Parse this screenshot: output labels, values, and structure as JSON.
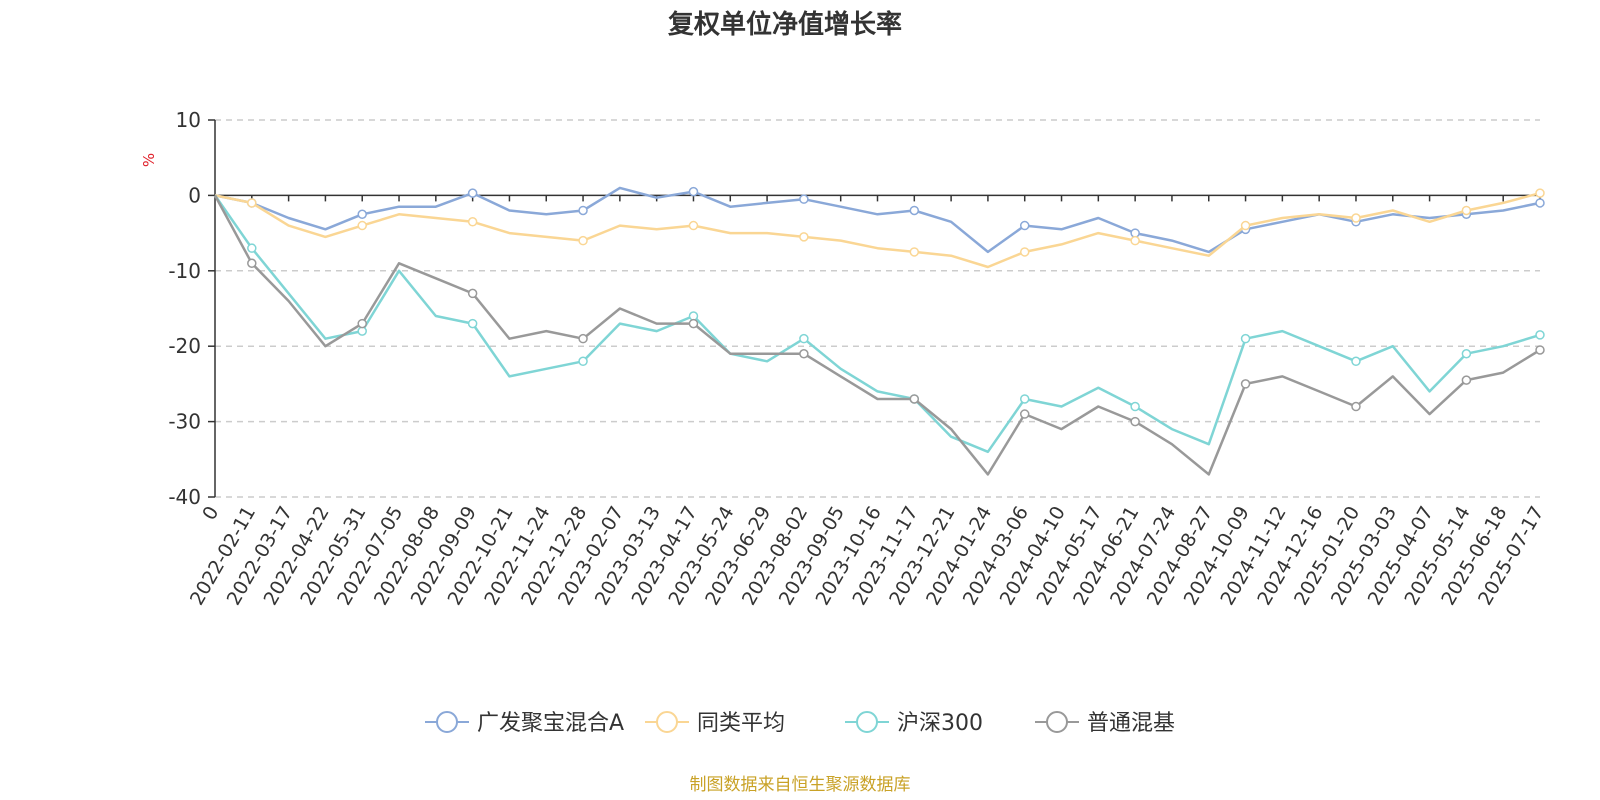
{
  "chart_data": {
    "type": "line",
    "title": "复权单位净值增长率",
    "ylabel": "%",
    "ylim": [
      -40,
      10
    ],
    "yticks": [
      10,
      0,
      -10,
      -20,
      -30,
      -40
    ],
    "grid": "dashed horizontal",
    "legend_position": "bottom-center",
    "source_note": "制图数据来自恒生聚源数据库",
    "x_origin_label": "0",
    "categories": [
      "2022-02-11",
      "2022-03-17",
      "2022-04-22",
      "2022-05-31",
      "2022-07-05",
      "2022-08-08",
      "2022-09-09",
      "2022-10-21",
      "2022-11-24",
      "2022-12-28",
      "2023-02-07",
      "2023-03-13",
      "2023-04-17",
      "2023-05-24",
      "2023-06-29",
      "2023-08-02",
      "2023-09-05",
      "2023-10-16",
      "2023-11-17",
      "2023-12-21",
      "2024-01-24",
      "2024-03-06",
      "2024-04-10",
      "2024-05-17",
      "2024-06-21",
      "2024-07-24",
      "2024-08-27",
      "2024-10-09",
      "2024-11-12",
      "2024-12-16",
      "2025-01-20",
      "2025-03-03",
      "2025-04-07",
      "2025-05-14",
      "2025-06-18",
      "2025-07-17"
    ],
    "series": [
      {
        "name": "广发聚宝混合A",
        "color": "#8aa8d8",
        "values": [
          -1,
          -3,
          -4.5,
          -2.5,
          -1.5,
          -1.5,
          0.3,
          -2,
          -2.5,
          -2,
          1,
          -0.3,
          0.5,
          -1.5,
          -1,
          -0.5,
          -1.5,
          -2.5,
          -2,
          -3.5,
          -7.5,
          -4,
          -4.5,
          -3,
          -5,
          -6,
          -7.5,
          -4.5,
          -3.5,
          -2.5,
          -3.5,
          -2.5,
          -3,
          -2.5,
          -2,
          -1
        ]
      },
      {
        "name": "同类平均",
        "color": "#fad694",
        "values": [
          -1,
          -4,
          -5.5,
          -4,
          -2.5,
          -3,
          -3.5,
          -5,
          -5.5,
          -6,
          -4,
          -4.5,
          -4,
          -5,
          -5,
          -5.5,
          -6,
          -7,
          -7.5,
          -8,
          -9.5,
          -7.5,
          -6.5,
          -5,
          -6,
          -7,
          -8,
          -4,
          -3,
          -2.5,
          -3,
          -2,
          -3.5,
          -2,
          -1,
          0.3
        ]
      },
      {
        "name": "沪深300",
        "color": "#7fd5d5",
        "values": [
          -7,
          -13,
          -19,
          -18,
          -10,
          -16,
          -17,
          -24,
          -23,
          -22,
          -17,
          -18,
          -16,
          -21,
          -22,
          -19,
          -23,
          -26,
          -27,
          -32,
          -34,
          -27,
          -28,
          -25.5,
          -28,
          -31,
          -33,
          -19,
          -18,
          -20,
          -22,
          -20,
          -26,
          -21,
          -20,
          -18.5
        ]
      },
      {
        "name": "普通混基",
        "color": "#999999",
        "values": [
          -9,
          -14,
          -20,
          -17,
          -9,
          -11,
          -13,
          -19,
          -18,
          -19,
          -15,
          -17,
          -17,
          -21,
          -21,
          -21,
          -24,
          -27,
          -27,
          -31,
          -37,
          -29,
          -31,
          -28,
          -30,
          -33,
          -37,
          -25,
          -24,
          -26,
          -28,
          -24,
          -29,
          -24.5,
          -23.5,
          -20.5
        ]
      }
    ]
  }
}
